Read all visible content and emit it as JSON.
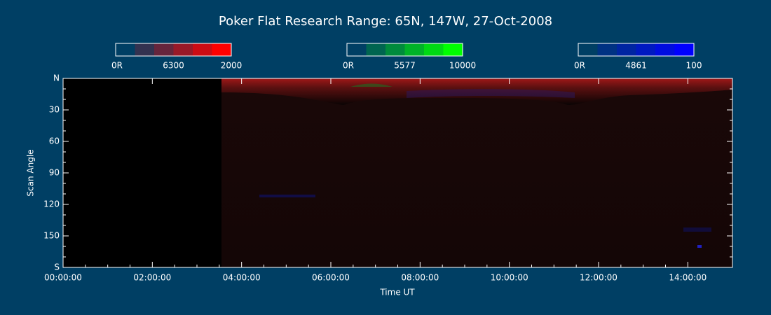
{
  "chart_data": {
    "type": "keogram",
    "title": "Poker Flat Research Range: 65N, 147W, 27-Oct-2008",
    "xlabel": "Time UT",
    "ylabel": "Scan Angle",
    "colorbars": [
      {
        "min_label": "0R",
        "name": "6300",
        "max": 2000,
        "color": "#ff0000"
      },
      {
        "min_label": "0R",
        "name": "5577",
        "max": 10000,
        "color": "#00ff00"
      },
      {
        "min_label": "0R",
        "name": "4861",
        "max": 100,
        "color": "#0000ff"
      }
    ],
    "xlim": [
      0,
      15
    ],
    "xticks": [
      {
        "value": 0,
        "label": "00:00:00"
      },
      {
        "value": 2,
        "label": "02:00:00"
      },
      {
        "value": 4,
        "label": "04:00:00"
      },
      {
        "value": 6,
        "label": "06:00:00"
      },
      {
        "value": 8,
        "label": "08:00:00"
      },
      {
        "value": 10,
        "label": "10:00:00"
      },
      {
        "value": 12,
        "label": "12:00:00"
      },
      {
        "value": 14,
        "label": "14:00:00"
      }
    ],
    "ylim": [
      0,
      180
    ],
    "yticks": [
      {
        "value": 0,
        "label": "N"
      },
      30,
      60,
      90,
      120,
      150,
      {
        "value": 180,
        "label": "S"
      }
    ]
  }
}
